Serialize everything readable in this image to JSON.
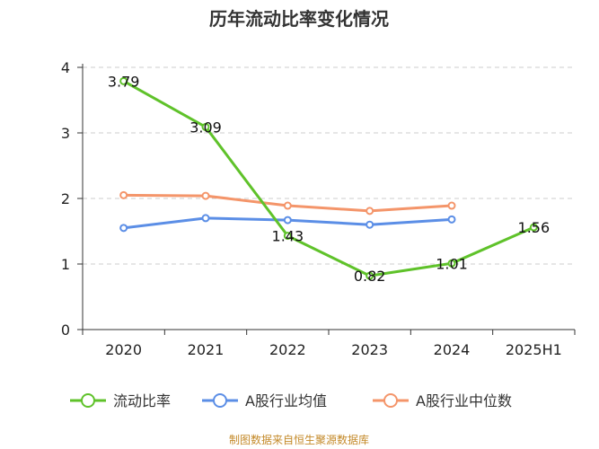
{
  "chart_data": {
    "type": "line",
    "title": "历年流动比率变化情况",
    "categories": [
      "2020",
      "2021",
      "2022",
      "2023",
      "2024",
      "2025H1"
    ],
    "ylim": [
      0,
      4
    ],
    "yticks": [
      0,
      1,
      2,
      3,
      4
    ],
    "grid": true,
    "legend_position": "bottom",
    "series": [
      {
        "name": "流动比率",
        "color": "#5fc22a",
        "values": [
          3.79,
          3.09,
          1.43,
          0.82,
          1.01,
          1.56
        ],
        "labels": [
          "3.79",
          "3.09",
          "1.43",
          "0.82",
          "1.01",
          "1.56"
        ]
      },
      {
        "name": "A股行业均值",
        "color": "#5b8ee6",
        "values": [
          1.55,
          1.7,
          1.67,
          1.6,
          1.68,
          null
        ]
      },
      {
        "name": "A股行业中位数",
        "color": "#f4956a",
        "values": [
          2.05,
          2.04,
          1.89,
          1.81,
          1.89,
          null
        ]
      }
    ],
    "source": "制图数据来自恒生聚源数据库"
  }
}
